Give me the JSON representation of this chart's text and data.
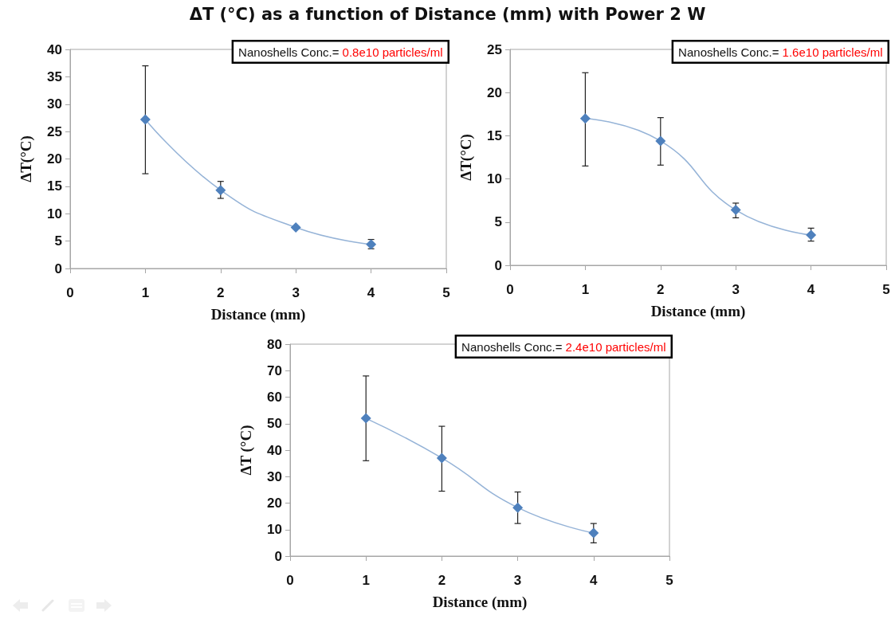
{
  "chart_data": [
    {
      "type": "line",
      "title": "ΔT (°C) as a function of Distance (mm) with Power 2 W",
      "xlabel": "Distance (mm)",
      "ylabel": "ΔT(°C)",
      "annotations": [
        "Nanoshells Conc.= 0.8e10 particles/ml"
      ],
      "x": [
        1,
        2,
        3,
        4
      ],
      "series": [
        {
          "color": "#4f81bd",
          "values": [
            27.2,
            14.3,
            7.5,
            4.4
          ],
          "errors": [
            [
              17.3,
              37
            ],
            [
              12.8,
              15.9
            ],
            null,
            [
              3.6,
              5.3
            ]
          ]
        }
      ],
      "xlim": [
        0,
        5
      ],
      "xticks": [
        0,
        1,
        2,
        3,
        4,
        5
      ],
      "ylim": [
        0,
        40
      ],
      "yticks": [
        0,
        5,
        10,
        15,
        20,
        25,
        30,
        35,
        40
      ],
      "marker": "diamond"
    },
    {
      "type": "line",
      "xlabel": "Distance (mm)",
      "ylabel": "ΔT(°C)",
      "annotations": [
        "Nanoshells Conc.= 1.6e10 particles/ml"
      ],
      "x": [
        1,
        2,
        3,
        4
      ],
      "series": [
        {
          "color": "#4f81bd",
          "values": [
            17,
            14.4,
            6.4,
            3.5
          ],
          "errors": [
            [
              11.5,
              22.3
            ],
            [
              11.6,
              17.1
            ],
            [
              5.5,
              7.2
            ],
            [
              2.8,
              4.3
            ]
          ]
        }
      ],
      "xlim": [
        0,
        5
      ],
      "xticks": [
        0,
        1,
        2,
        3,
        4,
        5
      ],
      "ylim": [
        0,
        25
      ],
      "yticks": [
        0,
        5,
        10,
        15,
        20,
        25
      ],
      "marker": "diamond"
    },
    {
      "type": "line",
      "xlabel": "Distance (mm)",
      "ylabel": "ΔT (°C)",
      "annotations": [
        "Nanoshells Conc.= 2.4e10 particles/ml"
      ],
      "x": [
        1,
        2,
        3,
        4
      ],
      "series": [
        {
          "color": "#4f81bd",
          "values": [
            52,
            37,
            18.3,
            8.7
          ],
          "errors": [
            [
              36,
              68
            ],
            [
              24.5,
              49
            ],
            [
              12.3,
              24.2
            ],
            [
              5,
              12.3
            ]
          ]
        }
      ],
      "xlim": [
        0,
        5
      ],
      "xticks": [
        0,
        1,
        2,
        3,
        4,
        5
      ],
      "ylim": [
        0,
        80
      ],
      "yticks": [
        0,
        10,
        20,
        30,
        40,
        50,
        60,
        70,
        80
      ],
      "marker": "diamond"
    }
  ]
}
